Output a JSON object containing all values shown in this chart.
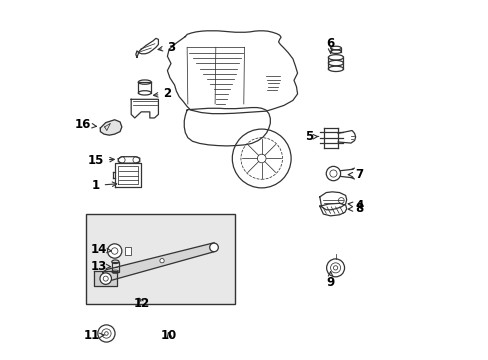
{
  "bg_color": "#ffffff",
  "box_bg_color": "#e8e8e8",
  "line_color": "#333333",
  "label_color": "#000000",
  "fig_width": 4.89,
  "fig_height": 3.6,
  "dpi": 100,
  "label_fontsize": 8.5,
  "label_positions": {
    "1": [
      0.085,
      0.485,
      0.155,
      0.49
    ],
    "2": [
      0.285,
      0.74,
      0.235,
      0.735
    ],
    "3": [
      0.295,
      0.87,
      0.248,
      0.862
    ],
    "4": [
      0.82,
      0.43,
      0.778,
      0.435
    ],
    "5": [
      0.68,
      0.62,
      0.715,
      0.622
    ],
    "6": [
      0.74,
      0.88,
      0.74,
      0.85
    ],
    "7": [
      0.82,
      0.515,
      0.778,
      0.515
    ],
    "8": [
      0.82,
      0.42,
      0.778,
      0.418
    ],
    "9": [
      0.74,
      0.215,
      0.74,
      0.248
    ],
    "10": [
      0.29,
      0.065,
      0.285,
      0.085
    ],
    "11": [
      0.075,
      0.065,
      0.112,
      0.068
    ],
    "12": [
      0.215,
      0.155,
      0.2,
      0.18
    ],
    "13": [
      0.095,
      0.26,
      0.13,
      0.258
    ],
    "14": [
      0.095,
      0.305,
      0.132,
      0.302
    ],
    "15": [
      0.085,
      0.555,
      0.148,
      0.558
    ],
    "16": [
      0.048,
      0.655,
      0.098,
      0.648
    ]
  }
}
